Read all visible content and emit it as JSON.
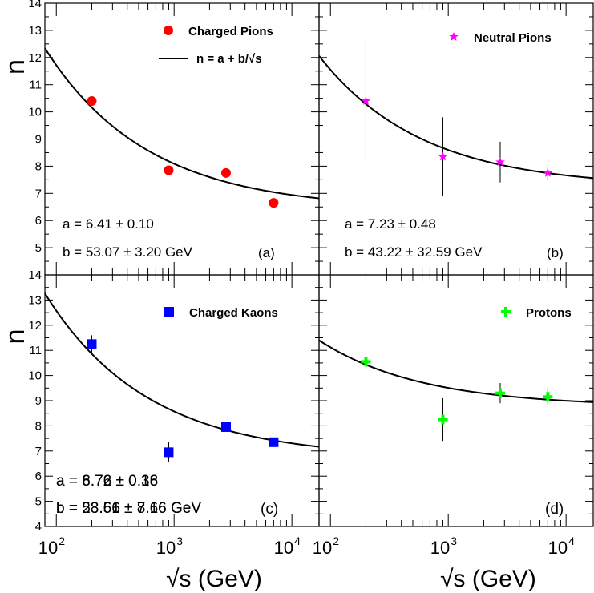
{
  "chart_data": [
    {
      "type": "scatter",
      "panel_label": "(a)",
      "legend": [
        "Charged Pions",
        "n = a + b/√s"
      ],
      "ylabel": "n",
      "xlabel": "",
      "xscale": "log",
      "xlim": [
        80,
        17000
      ],
      "ylim": [
        4,
        14
      ],
      "fit_a_text": "a = 6.41 ± 0.10",
      "fit_b_text": "b = 53.07 ± 3.20 GeV",
      "fit": {
        "a": 6.41,
        "b": 53.07
      },
      "series": [
        {
          "name": "Charged Pions",
          "color": "#ff0000",
          "marker": "circle",
          "x": [
            200,
            900,
            2760,
            7000
          ],
          "y": [
            10.4,
            7.85,
            7.75,
            6.65
          ],
          "yerr": [
            0,
            0,
            0,
            0
          ]
        }
      ]
    },
    {
      "type": "scatter",
      "panel_label": "(b)",
      "legend": [
        "Neutral Pions"
      ],
      "ylabel": "",
      "xlabel": "",
      "xscale": "log",
      "xlim": [
        80,
        17000
      ],
      "ylim": [
        4,
        14
      ],
      "fit_a_text": "a = 7.23 ± 0.48",
      "fit_b_text": "b = 43.22 ± 32.59 GeV",
      "fit": {
        "a": 7.23,
        "b": 43.22
      },
      "series": [
        {
          "name": "Neutral Pions",
          "color": "#ff00ff",
          "marker": "star",
          "x": [
            200,
            900,
            2760,
            7000
          ],
          "y": [
            10.4,
            8.35,
            8.15,
            7.75
          ],
          "yerr": [
            2.25,
            1.45,
            0.75,
            0.25
          ]
        }
      ]
    },
    {
      "type": "scatter",
      "panel_label": "(c)",
      "legend": [
        "Charged Kaons"
      ],
      "ylabel": "n",
      "xlabel": "√s (GeV)",
      "xscale": "log",
      "xlim": [
        80,
        17000
      ],
      "ylim": [
        4,
        14
      ],
      "fit_a_text": "a = 6.72 ± 0.18",
      "fit_b_text": "b = 58.56 ± 7.16 GeV",
      "fit": {
        "a": 6.72,
        "b": 58.56
      },
      "series": [
        {
          "name": "Charged Kaons",
          "color": "#0000ff",
          "marker": "square",
          "x": [
            200,
            900,
            2760,
            7000
          ],
          "y": [
            11.25,
            6.95,
            7.95,
            7.35
          ],
          "yerr": [
            0.35,
            0.4,
            0.12,
            0.12
          ]
        }
      ]
    },
    {
      "type": "scatter",
      "panel_label": "(d)",
      "legend": [
        "Protons"
      ],
      "ylabel": "",
      "xlabel": "√s (GeV)",
      "xscale": "log",
      "xlim": [
        80,
        17000
      ],
      "ylim": [
        4,
        14
      ],
      "fit_a_text": "a = 8.76 ± 0.36",
      "fit_b_text": "b = 23.61 ± 8.66 GeV",
      "fit": {
        "a": 8.76,
        "b": 23.61
      },
      "series": [
        {
          "name": "Protons",
          "color": "#00ff00",
          "marker": "cross",
          "x": [
            200,
            900,
            2760,
            7000
          ],
          "y": [
            10.55,
            8.25,
            9.3,
            9.15
          ],
          "yerr": [
            0.35,
            0.85,
            0.4,
            0.35
          ]
        }
      ]
    }
  ],
  "y_tick_labels": [
    "4",
    "5",
    "6",
    "7",
    "8",
    "9",
    "10",
    "11",
    "12",
    "13",
    "14"
  ],
  "x_tick_labels": [
    {
      "base": "10",
      "exp": "2"
    },
    {
      "base": "10",
      "exp": "3"
    },
    {
      "base": "10",
      "exp": "4"
    }
  ]
}
